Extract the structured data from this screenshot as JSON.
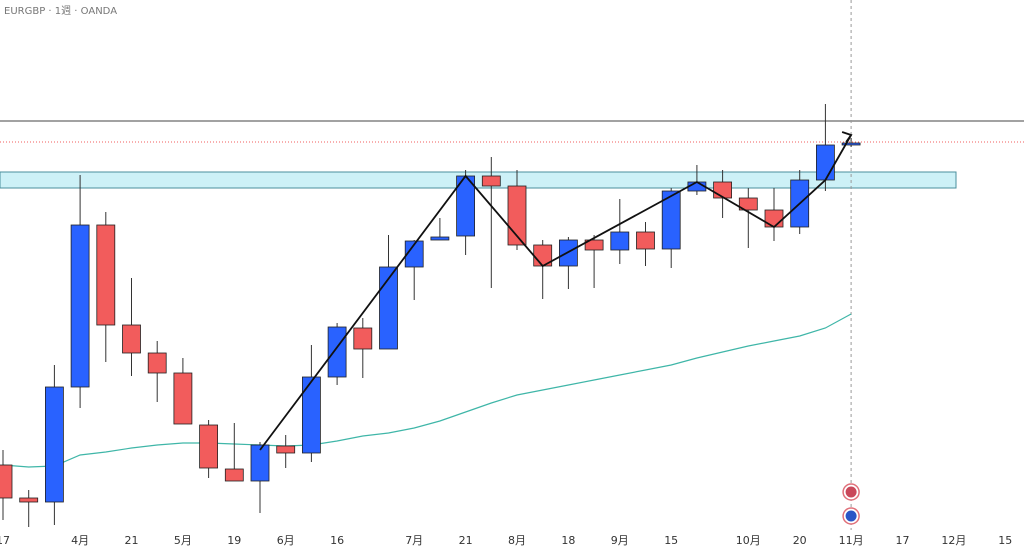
{
  "chart_data": {
    "type": "candlestick",
    "title": "EURGBP · 1週 · OANDA",
    "categories": [
      "17",
      null,
      null,
      "4月",
      null,
      "21",
      null,
      "5月",
      null,
      "19",
      null,
      "6月",
      null,
      "16",
      null,
      null,
      "7月",
      null,
      "21",
      null,
      "8月",
      null,
      "18",
      null,
      "9月",
      null,
      "15",
      null,
      null,
      "10月",
      null,
      "20",
      null,
      "11月",
      null,
      "17",
      null,
      "12月",
      null,
      "15"
    ],
    "open": [
      0.8335,
      0.8302,
      0.8298,
      0.8413,
      0.8575,
      0.8475,
      0.8447,
      0.8427,
      0.8375,
      0.8331,
      0.8319,
      0.8354,
      0.8347,
      0.8423,
      0.8472,
      0.8451,
      0.8533,
      0.856,
      0.8564,
      0.8624,
      0.8614,
      0.8555,
      0.8534,
      0.856,
      0.855,
      0.8568,
      0.8551,
      0.8609,
      0.8618,
      0.8602,
      0.859,
      0.8573,
      0.862,
      0.8655,
      null,
      null,
      null,
      null,
      null,
      null
    ],
    "high": [
      0.835,
      0.831,
      0.8435,
      0.8625,
      0.8588,
      0.8522,
      0.8459,
      0.8442,
      0.838,
      0.8377,
      0.8358,
      0.8365,
      0.8455,
      0.8477,
      0.8482,
      0.8565,
      0.856,
      0.8582,
      0.863,
      0.8643,
      0.863,
      0.856,
      0.8563,
      0.8565,
      0.8601,
      0.8578,
      0.8612,
      0.8635,
      0.863,
      0.8612,
      0.8612,
      0.863,
      0.8696,
      0.8662,
      null,
      null,
      null,
      null,
      null,
      null
    ],
    "low": [
      0.828,
      0.8273,
      0.8275,
      0.8392,
      0.8438,
      0.8424,
      0.8398,
      0.8376,
      0.8322,
      0.8319,
      0.8287,
      0.8332,
      0.8338,
      0.8415,
      0.8422,
      0.8451,
      0.85,
      0.856,
      0.8545,
      0.8512,
      0.855,
      0.8501,
      0.8511,
      0.8512,
      0.8536,
      0.8534,
      0.8532,
      0.8605,
      0.8582,
      0.8552,
      0.8559,
      0.8566,
      0.8609,
      0.8653,
      null,
      null,
      null,
      null,
      null,
      null
    ],
    "close": [
      0.8302,
      0.8298,
      0.8413,
      0.8575,
      0.8475,
      0.8447,
      0.8427,
      0.8376,
      0.8332,
      0.8319,
      0.8355,
      0.8347,
      0.8423,
      0.8473,
      0.8451,
      0.8533,
      0.8559,
      0.8563,
      0.8624,
      0.8614,
      0.8555,
      0.8534,
      0.856,
      0.855,
      0.8568,
      0.8551,
      0.8609,
      0.8618,
      0.8602,
      0.859,
      0.8573,
      0.862,
      0.8655,
      0.8657,
      null,
      null,
      null,
      null,
      null,
      null
    ],
    "up_color": "#2962ff",
    "down_color": "#f25c5c",
    "moving_average": {
      "color": "#3fb6a8",
      "values": [
        0.8335,
        0.8333,
        0.8334,
        0.8345,
        0.8348,
        0.8352,
        0.8355,
        0.8357,
        0.8357,
        0.8356,
        0.8355,
        0.8354,
        0.8355,
        0.8359,
        0.8364,
        0.8367,
        0.8372,
        0.8379,
        0.8388,
        0.8397,
        0.8405,
        0.841,
        0.8415,
        0.842,
        0.8425,
        0.843,
        0.8435,
        0.8442,
        0.8448,
        0.8454,
        0.8459,
        0.8464,
        0.8472,
        0.8486,
        null,
        null,
        null,
        null,
        null,
        null
      ]
    },
    "zigzag": {
      "x": [
        10,
        18,
        21,
        27,
        30,
        32,
        33
      ],
      "values": [
        0.835,
        0.8624,
        0.8534,
        0.8618,
        0.8573,
        0.862,
        0.8665
      ]
    },
    "resistance": 0.8679,
    "last_price": 0.8658,
    "zone": [
      0.8628,
      0.8612
    ],
    "ylim": [
      0.8251,
      0.88
    ]
  }
}
